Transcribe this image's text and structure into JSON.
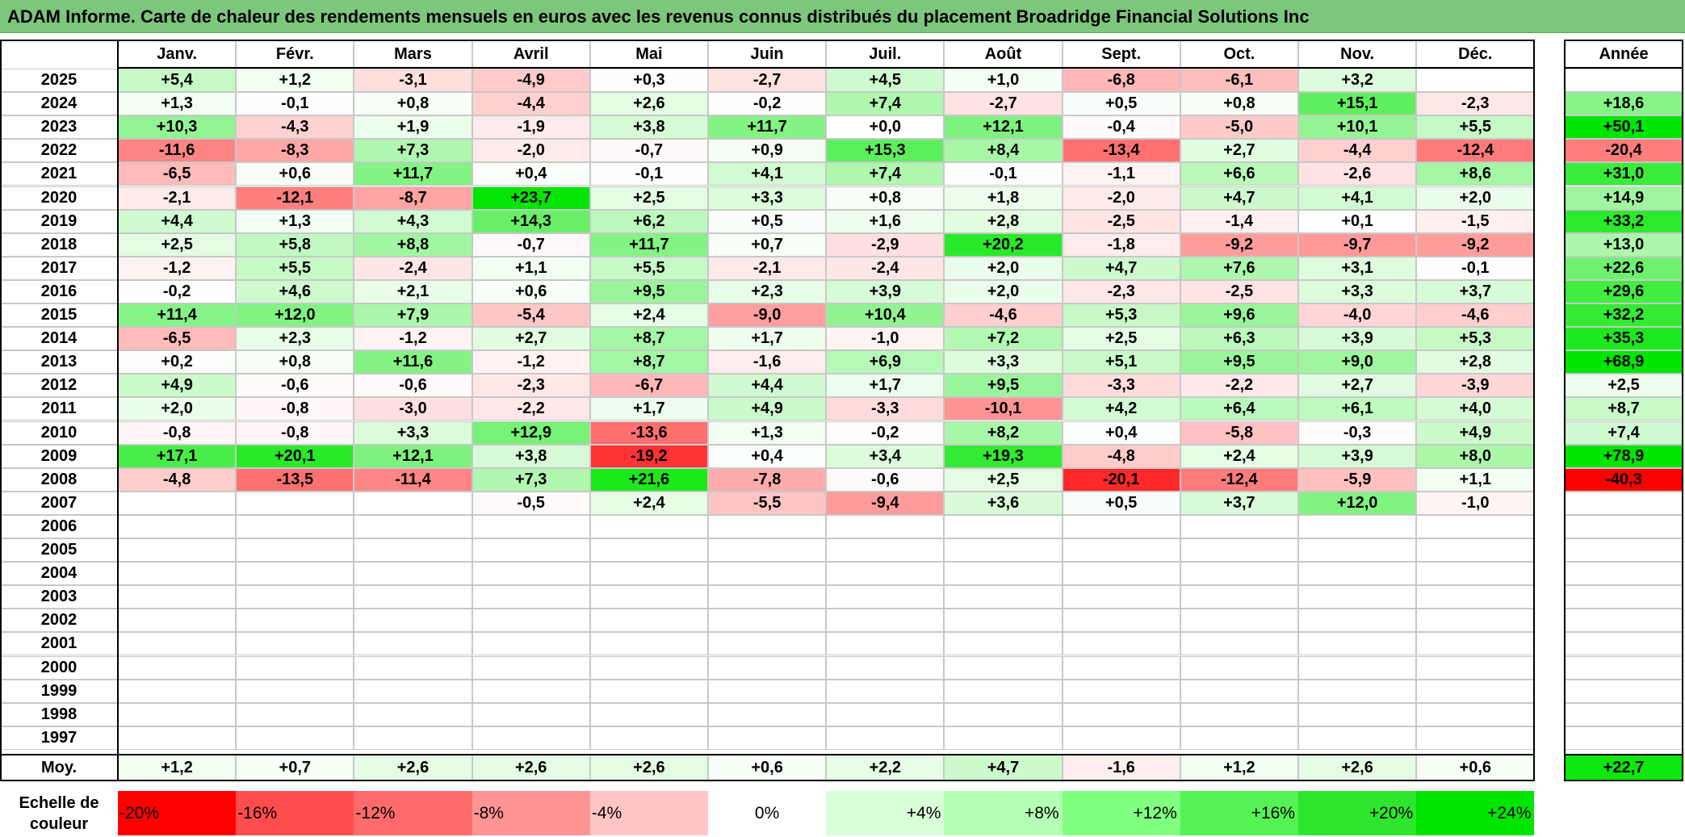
{
  "title": "ADAM Informe. Carte de chaleur des rendements mensuels en euros avec les revenus connus distribués du placement Broadridge Financial Solutions Inc",
  "colors": {
    "title_bg": "#7dc67d",
    "neg_strong": "#ff0000",
    "pos_strong": "#00e600",
    "neutral": "#ffffff"
  },
  "chart_data": {
    "type": "heatmap",
    "title": "ADAM Informe. Carte de chaleur des rendements mensuels en euros avec les revenus connus distribués du placement Broadridge Financial Solutions Inc",
    "columns": [
      "Janv.",
      "Févr.",
      "Mars",
      "Avril",
      "Mai",
      "Juin",
      "Juil.",
      "Août",
      "Sept.",
      "Oct.",
      "Nov.",
      "Déc."
    ],
    "annual_label": "Année",
    "rows": [
      {
        "year": "2025",
        "values": [
          "+5,4",
          "+1,2",
          "-3,1",
          "-4,9",
          "+0,3",
          "-2,7",
          "+4,5",
          "+1,0",
          "-6,8",
          "-6,1",
          "+3,2",
          ""
        ],
        "annual": ""
      },
      {
        "year": "2024",
        "values": [
          "+1,3",
          "-0,1",
          "+0,8",
          "-4,4",
          "+2,6",
          "-0,2",
          "+7,4",
          "-2,7",
          "+0,5",
          "+0,8",
          "+15,1",
          "-2,3"
        ],
        "annual": "+18,6"
      },
      {
        "year": "2023",
        "values": [
          "+10,3",
          "-4,3",
          "+1,9",
          "-1,9",
          "+3,8",
          "+11,7",
          "+0,0",
          "+12,1",
          "-0,4",
          "-5,0",
          "+10,1",
          "+5,5"
        ],
        "annual": "+50,1"
      },
      {
        "year": "2022",
        "values": [
          "-11,6",
          "-8,3",
          "+7,3",
          "-2,0",
          "-0,7",
          "+0,9",
          "+15,3",
          "+8,4",
          "-13,4",
          "+2,7",
          "-4,4",
          "-12,4"
        ],
        "annual": "-20,4"
      },
      {
        "year": "2021",
        "values": [
          "-6,5",
          "+0,6",
          "+11,7",
          "+0,4",
          "-0,1",
          "+4,1",
          "+7,4",
          "-0,1",
          "-1,1",
          "+6,6",
          "-2,6",
          "+8,6"
        ],
        "annual": "+31,0"
      },
      {
        "year": "2020",
        "values": [
          "-2,1",
          "-12,1",
          "-8,7",
          "+23,7",
          "+2,5",
          "+3,3",
          "+0,8",
          "+1,8",
          "-2,0",
          "+4,7",
          "+4,1",
          "+2,0"
        ],
        "annual": "+14,9"
      },
      {
        "year": "2019",
        "values": [
          "+4,4",
          "+1,3",
          "+4,3",
          "+14,3",
          "+6,2",
          "+0,5",
          "+1,6",
          "+2,8",
          "-2,5",
          "-1,4",
          "+0,1",
          "-1,5"
        ],
        "annual": "+33,2"
      },
      {
        "year": "2018",
        "values": [
          "+2,5",
          "+5,8",
          "+8,8",
          "-0,7",
          "+11,7",
          "+0,7",
          "-2,9",
          "+20,2",
          "-1,8",
          "-9,2",
          "-9,7",
          "-9,2"
        ],
        "annual": "+13,0"
      },
      {
        "year": "2017",
        "values": [
          "-1,2",
          "+5,5",
          "-2,4",
          "+1,1",
          "+5,5",
          "-2,1",
          "-2,4",
          "+2,0",
          "+4,7",
          "+7,6",
          "+3,1",
          "-0,1"
        ],
        "annual": "+22,6"
      },
      {
        "year": "2016",
        "values": [
          "-0,2",
          "+4,6",
          "+2,1",
          "+0,6",
          "+9,5",
          "+2,3",
          "+3,9",
          "+2,0",
          "-2,3",
          "-2,5",
          "+3,3",
          "+3,7"
        ],
        "annual": "+29,6"
      },
      {
        "year": "2015",
        "values": [
          "+11,4",
          "+12,0",
          "+7,9",
          "-5,4",
          "+2,4",
          "-9,0",
          "+10,4",
          "-4,6",
          "+5,3",
          "+9,6",
          "-4,0",
          "-4,6"
        ],
        "annual": "+32,2"
      },
      {
        "year": "2014",
        "values": [
          "-6,5",
          "+2,3",
          "-1,2",
          "+2,7",
          "+8,7",
          "+1,7",
          "-1,0",
          "+7,2",
          "+2,5",
          "+6,3",
          "+3,9",
          "+5,3"
        ],
        "annual": "+35,3"
      },
      {
        "year": "2013",
        "values": [
          "+0,2",
          "+0,8",
          "+11,6",
          "-1,2",
          "+8,7",
          "-1,6",
          "+6,9",
          "+3,3",
          "+5,1",
          "+9,5",
          "+9,0",
          "+2,8"
        ],
        "annual": "+68,9"
      },
      {
        "year": "2012",
        "values": [
          "+4,9",
          "-0,6",
          "-0,6",
          "-2,3",
          "-6,7",
          "+4,4",
          "+1,7",
          "+9,5",
          "-3,3",
          "-2,2",
          "+2,7",
          "-3,9"
        ],
        "annual": "+2,5"
      },
      {
        "year": "2011",
        "values": [
          "+2,0",
          "-0,8",
          "-3,0",
          "-2,2",
          "+1,7",
          "+4,9",
          "-3,3",
          "-10,1",
          "+4,2",
          "+6,4",
          "+6,1",
          "+4,0"
        ],
        "annual": "+8,7"
      },
      {
        "year": "2010",
        "values": [
          "-0,8",
          "-0,8",
          "+3,3",
          "+12,9",
          "-13,6",
          "+1,3",
          "-0,2",
          "+8,2",
          "+0,4",
          "-5,8",
          "-0,3",
          "+4,9"
        ],
        "annual": "+7,4"
      },
      {
        "year": "2009",
        "values": [
          "+17,1",
          "+20,1",
          "+12,1",
          "+3,8",
          "-19,2",
          "+0,4",
          "+3,4",
          "+19,3",
          "-4,8",
          "+2,4",
          "+3,9",
          "+8,0"
        ],
        "annual": "+78,9"
      },
      {
        "year": "2008",
        "values": [
          "-4,8",
          "-13,5",
          "-11,4",
          "+7,3",
          "+21,6",
          "-7,8",
          "-0,6",
          "+2,5",
          "-20,1",
          "-12,4",
          "-5,9",
          "+1,1"
        ],
        "annual": "-40,3"
      },
      {
        "year": "2007",
        "values": [
          "",
          "",
          "",
          "-0,5",
          "+2,4",
          "-5,5",
          "-9,4",
          "+3,6",
          "+0,5",
          "+3,7",
          "+12,0",
          "-1,0"
        ],
        "annual": ""
      },
      {
        "year": "2006",
        "values": [
          "",
          "",
          "",
          "",
          "",
          "",
          "",
          "",
          "",
          "",
          "",
          ""
        ],
        "annual": ""
      },
      {
        "year": "2005",
        "values": [
          "",
          "",
          "",
          "",
          "",
          "",
          "",
          "",
          "",
          "",
          "",
          ""
        ],
        "annual": ""
      },
      {
        "year": "2004",
        "values": [
          "",
          "",
          "",
          "",
          "",
          "",
          "",
          "",
          "",
          "",
          "",
          ""
        ],
        "annual": ""
      },
      {
        "year": "2003",
        "values": [
          "",
          "",
          "",
          "",
          "",
          "",
          "",
          "",
          "",
          "",
          "",
          ""
        ],
        "annual": ""
      },
      {
        "year": "2002",
        "values": [
          "",
          "",
          "",
          "",
          "",
          "",
          "",
          "",
          "",
          "",
          "",
          ""
        ],
        "annual": ""
      },
      {
        "year": "2001",
        "values": [
          "",
          "",
          "",
          "",
          "",
          "",
          "",
          "",
          "",
          "",
          "",
          ""
        ],
        "annual": ""
      },
      {
        "year": "2000",
        "values": [
          "",
          "",
          "",
          "",
          "",
          "",
          "",
          "",
          "",
          "",
          "",
          ""
        ],
        "annual": ""
      },
      {
        "year": "1999",
        "values": [
          "",
          "",
          "",
          "",
          "",
          "",
          "",
          "",
          "",
          "",
          "",
          ""
        ],
        "annual": ""
      },
      {
        "year": "1998",
        "values": [
          "",
          "",
          "",
          "",
          "",
          "",
          "",
          "",
          "",
          "",
          "",
          ""
        ],
        "annual": ""
      },
      {
        "year": "1997",
        "values": [
          "",
          "",
          "",
          "",
          "",
          "",
          "",
          "",
          "",
          "",
          "",
          ""
        ],
        "annual": ""
      }
    ],
    "average": {
      "label": "Moy.",
      "values": [
        "+1,2",
        "+0,7",
        "+2,6",
        "+2,6",
        "+2,6",
        "+0,6",
        "+2,2",
        "+4,7",
        "-1,6",
        "+1,2",
        "+2,6",
        "+0,6"
      ],
      "annual": "+22,7"
    },
    "scale": {
      "label": "Echelle de couleur",
      "steps": [
        "-20%",
        "-16%",
        "-12%",
        "-8%",
        "-4%",
        "0%",
        "+4%",
        "+8%",
        "+12%",
        "+16%",
        "+20%",
        "+24%"
      ],
      "colors": [
        "#ff0000",
        "#ff4d4d",
        "#ff6b6b",
        "#ff9494",
        "#ffc4c4",
        "#ffffff",
        "#d9ffd9",
        "#b3ffb3",
        "#80ff80",
        "#55f255",
        "#2ee62e",
        "#00e600"
      ]
    }
  }
}
